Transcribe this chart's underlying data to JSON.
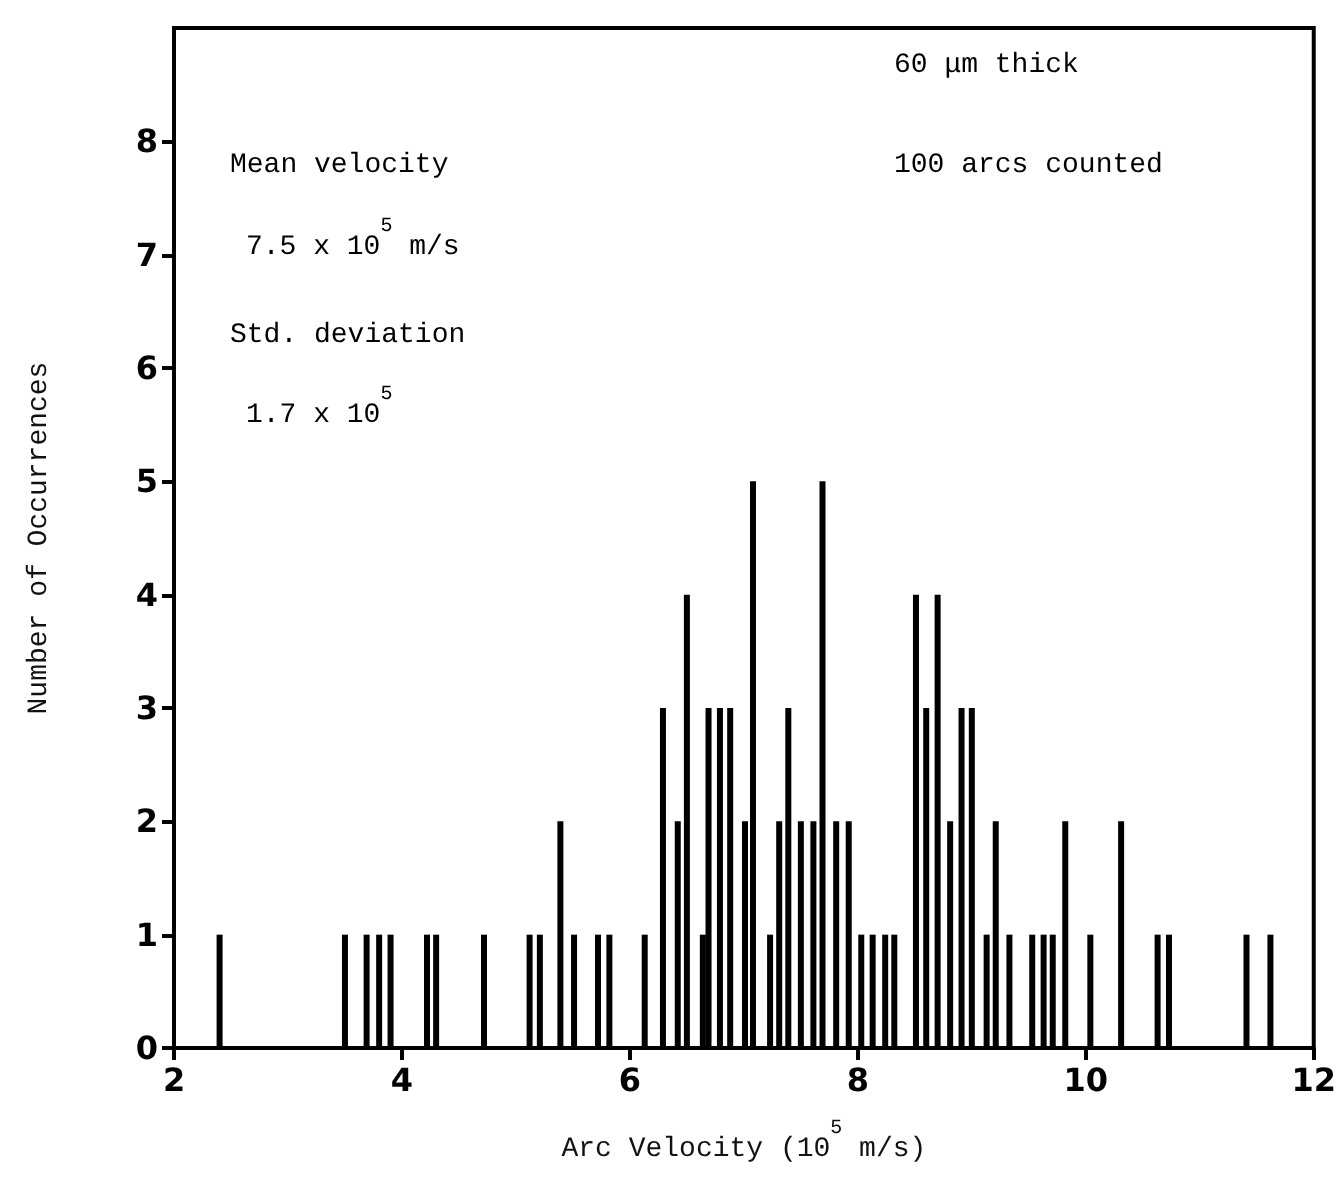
{
  "chart_data": {
    "type": "bar",
    "xlabel": "Arc Velocity (10$^{5}$ m/s)",
    "ylabel": "Number of Occurrences",
    "annotations": [
      "Mean velocity",
      "7.5 x 10$^{5}$ m/s",
      "Std. deviation",
      "1.7 x 10$^{5}$",
      "60 μm thick",
      "100 arcs counted"
    ],
    "x": [
      2.4,
      3.5,
      3.69,
      3.8,
      3.9,
      4.22,
      4.3,
      4.72,
      5.12,
      5.21,
      5.39,
      5.51,
      5.72,
      5.82,
      6.13,
      6.29,
      6.42,
      6.5,
      6.64,
      6.69,
      6.79,
      6.88,
      7.01,
      7.08,
      7.23,
      7.31,
      7.39,
      7.5,
      7.61,
      7.69,
      7.81,
      7.92,
      8.03,
      8.13,
      8.24,
      8.32,
      8.51,
      8.6,
      8.7,
      8.81,
      8.91,
      9.0,
      9.13,
      9.21,
      9.33,
      9.53,
      9.63,
      9.71,
      9.82,
      10.04,
      10.31,
      10.63,
      10.73,
      11.41,
      11.62
    ],
    "values": [
      1,
      1,
      1,
      1,
      1,
      1,
      1,
      1,
      1,
      1,
      2,
      1,
      1,
      1,
      1,
      3,
      2,
      4,
      1,
      3,
      3,
      3,
      2,
      5,
      1,
      2,
      3,
      2,
      2,
      5,
      2,
      2,
      1,
      1,
      1,
      1,
      4,
      3,
      4,
      2,
      3,
      3,
      1,
      2,
      1,
      1,
      1,
      1,
      2,
      1,
      2,
      1,
      1,
      1,
      1
    ],
    "color": "#000000",
    "xlim": [
      2,
      12
    ],
    "xticks": [
      2,
      4,
      6,
      8,
      10,
      12
    ],
    "ylim": [
      0,
      9
    ],
    "yticks": [
      0,
      1,
      2,
      3,
      4,
      5,
      6,
      7,
      8
    ],
    "grid": false
  }
}
